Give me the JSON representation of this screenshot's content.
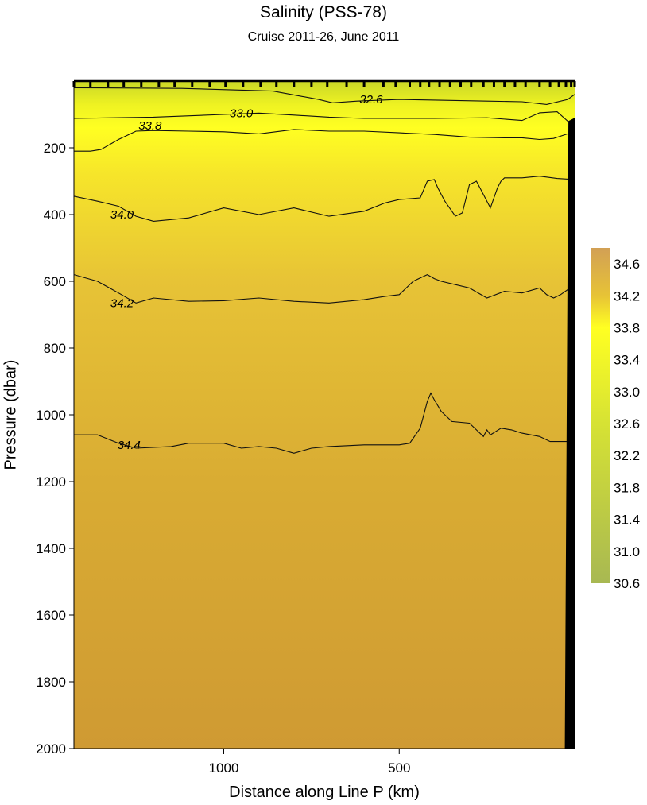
{
  "chart_data": {
    "type": "heatmap",
    "title": "Salinity  (PSS-78)",
    "subtitle": "Cruise 2011-26,  June 2011",
    "xlabel": "Distance along Line P  (km)",
    "ylabel": "Pressure  (dbar)",
    "x_axis": {
      "reversed": true,
      "range": [
        1427,
        0
      ],
      "ticks": [
        1000,
        500
      ]
    },
    "y_axis": {
      "reversed": true,
      "range": [
        0,
        2000
      ],
      "ticks": [
        200,
        400,
        600,
        800,
        1000,
        1200,
        1400,
        1600,
        1800,
        2000
      ]
    },
    "colorbar": {
      "range": [
        30.6,
        34.8
      ],
      "ticks": [
        34.6,
        34.2,
        33.8,
        33.4,
        33.0,
        32.6,
        32.2,
        31.8,
        31.4,
        31.0,
        30.6
      ],
      "tick_labels": [
        "34.6",
        "34.2",
        "33.8",
        "33.4",
        "33.0",
        "32.6",
        "32.2",
        "31.8",
        "31.4",
        "31.0",
        "30.6"
      ],
      "color_stops": [
        {
          "value": 30.6,
          "color": "#a8b852"
        },
        {
          "value": 32.6,
          "color": "#d6e234"
        },
        {
          "value": 33.8,
          "color": "#ffff22"
        },
        {
          "value": 34.2,
          "color": "#e7c336"
        },
        {
          "value": 34.8,
          "color": "#d2a055"
        }
      ]
    },
    "contours": [
      {
        "level": "32.6",
        "label": "32.6",
        "points": [
          [
            1427,
            20
          ],
          [
            1120,
            22
          ],
          [
            860,
            30
          ],
          [
            730,
            55
          ],
          [
            690,
            65
          ],
          [
            620,
            60
          ],
          [
            500,
            55
          ],
          [
            250,
            60
          ],
          [
            150,
            62
          ],
          [
            80,
            70
          ],
          [
            20,
            55
          ],
          [
            0,
            40
          ]
        ]
      },
      {
        "level": "33.0",
        "label": "33.0",
        "points": [
          [
            1427,
            112
          ],
          [
            1200,
            108
          ],
          [
            1000,
            100
          ],
          [
            900,
            96
          ],
          [
            800,
            102
          ],
          [
            700,
            108
          ],
          [
            600,
            112
          ],
          [
            400,
            112
          ],
          [
            250,
            110
          ],
          [
            150,
            118
          ],
          [
            100,
            95
          ],
          [
            50,
            92
          ],
          [
            20,
            120
          ],
          [
            0,
            130
          ]
        ]
      },
      {
        "level": "33.8",
        "label": "33.8",
        "points": [
          [
            1427,
            210
          ],
          [
            1380,
            210
          ],
          [
            1350,
            205
          ],
          [
            1300,
            175
          ],
          [
            1250,
            150
          ],
          [
            1200,
            148
          ],
          [
            1100,
            150
          ],
          [
            1000,
            152
          ],
          [
            900,
            158
          ],
          [
            800,
            145
          ],
          [
            700,
            150
          ],
          [
            600,
            150
          ],
          [
            500,
            155
          ],
          [
            400,
            160
          ],
          [
            300,
            168
          ],
          [
            200,
            170
          ],
          [
            150,
            170
          ],
          [
            100,
            175
          ],
          [
            60,
            172
          ],
          [
            20,
            158
          ],
          [
            0,
            155
          ]
        ]
      },
      {
        "level": "34.0",
        "label": "34.0",
        "points": [
          [
            1427,
            345
          ],
          [
            1360,
            360
          ],
          [
            1300,
            375
          ],
          [
            1250,
            405
          ],
          [
            1200,
            420
          ],
          [
            1100,
            410
          ],
          [
            1000,
            380
          ],
          [
            900,
            400
          ],
          [
            800,
            380
          ],
          [
            700,
            405
          ],
          [
            600,
            390
          ],
          [
            540,
            365
          ],
          [
            500,
            355
          ],
          [
            440,
            350
          ],
          [
            420,
            300
          ],
          [
            400,
            295
          ],
          [
            390,
            320
          ],
          [
            370,
            360
          ],
          [
            340,
            405
          ],
          [
            320,
            395
          ],
          [
            300,
            310
          ],
          [
            280,
            300
          ],
          [
            260,
            340
          ],
          [
            240,
            380
          ],
          [
            220,
            320
          ],
          [
            210,
            300
          ],
          [
            200,
            290
          ],
          [
            150,
            290
          ],
          [
            100,
            285
          ],
          [
            50,
            292
          ],
          [
            0,
            295
          ]
        ]
      },
      {
        "level": "34.2",
        "label": "34.2",
        "points": [
          [
            1427,
            580
          ],
          [
            1360,
            600
          ],
          [
            1300,
            635
          ],
          [
            1250,
            665
          ],
          [
            1200,
            650
          ],
          [
            1100,
            660
          ],
          [
            1000,
            658
          ],
          [
            900,
            650
          ],
          [
            800,
            660
          ],
          [
            700,
            665
          ],
          [
            600,
            655
          ],
          [
            540,
            645
          ],
          [
            500,
            640
          ],
          [
            460,
            600
          ],
          [
            440,
            590
          ],
          [
            420,
            580
          ],
          [
            400,
            592
          ],
          [
            380,
            600
          ],
          [
            340,
            610
          ],
          [
            300,
            620
          ],
          [
            250,
            650
          ],
          [
            200,
            630
          ],
          [
            150,
            635
          ],
          [
            100,
            620
          ],
          [
            80,
            640
          ],
          [
            60,
            650
          ],
          [
            40,
            640
          ],
          [
            20,
            625
          ],
          [
            0,
            620
          ]
        ]
      },
      {
        "level": "34.4",
        "label": "34.4",
        "points": [
          [
            1427,
            1060
          ],
          [
            1360,
            1060
          ],
          [
            1300,
            1085
          ],
          [
            1250,
            1100
          ],
          [
            1150,
            1095
          ],
          [
            1100,
            1085
          ],
          [
            1000,
            1085
          ],
          [
            950,
            1100
          ],
          [
            900,
            1095
          ],
          [
            850,
            1100
          ],
          [
            800,
            1115
          ],
          [
            750,
            1100
          ],
          [
            700,
            1095
          ],
          [
            600,
            1090
          ],
          [
            500,
            1090
          ],
          [
            470,
            1085
          ],
          [
            440,
            1040
          ],
          [
            420,
            960
          ],
          [
            410,
            935
          ],
          [
            400,
            955
          ],
          [
            380,
            990
          ],
          [
            350,
            1020
          ],
          [
            300,
            1025
          ],
          [
            280,
            1045
          ],
          [
            260,
            1065
          ],
          [
            250,
            1045
          ],
          [
            240,
            1060
          ],
          [
            210,
            1040
          ],
          [
            180,
            1045
          ],
          [
            150,
            1055
          ],
          [
            100,
            1065
          ],
          [
            70,
            1080
          ],
          [
            0,
            1080
          ]
        ]
      }
    ],
    "station_ticks_km": [
      1427,
      1380,
      1330,
      1285,
      1235,
      1185,
      1140,
      1090,
      1040,
      995,
      945,
      895,
      850,
      800,
      750,
      705,
      650,
      600,
      545,
      510,
      470,
      440,
      415,
      385,
      355,
      325,
      295,
      260,
      230,
      200,
      170,
      140,
      100,
      70,
      45,
      25,
      10,
      0
    ],
    "seafloor_outline": [
      [
        1427,
        2000
      ],
      [
        28,
        2000
      ],
      [
        18,
        120
      ],
      [
        0,
        110
      ],
      [
        0,
        2000
      ]
    ]
  }
}
